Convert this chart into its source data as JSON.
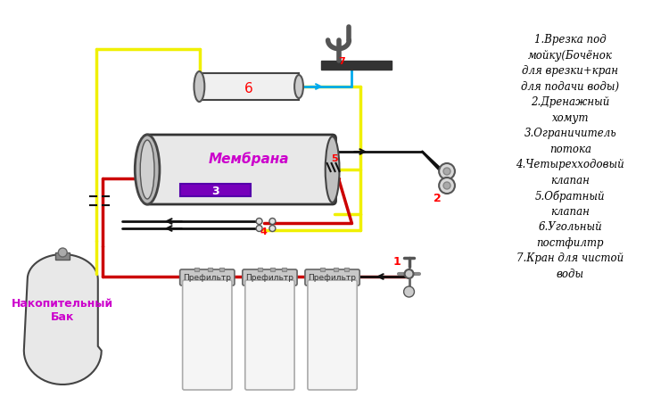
{
  "bg_color": "#ffffff",
  "membrane_label": "Мембрана",
  "tank_label": "Накопительный\nБак",
  "prefilter_label": "Префильтр",
  "yellow_color": "#f0f000",
  "red_color": "#cc0000",
  "blue_color": "#00aaee",
  "black_color": "#111111",
  "dark_color": "#222222",
  "membrane_text_color": "#cc00cc",
  "legend_lines": [
    "1.Врезка под",
    "мойку(Бочёнок",
    "для врезки+кран",
    "для подачи воды)",
    "2.Дренажный",
    "хомут",
    "3.Ограничитель",
    "потока",
    "4.Четырехходовый",
    "клапан",
    "5.Обратный",
    "клапан",
    "6.Угольный",
    "постфилтр",
    "7.Кран для чистой",
    "воды"
  ]
}
